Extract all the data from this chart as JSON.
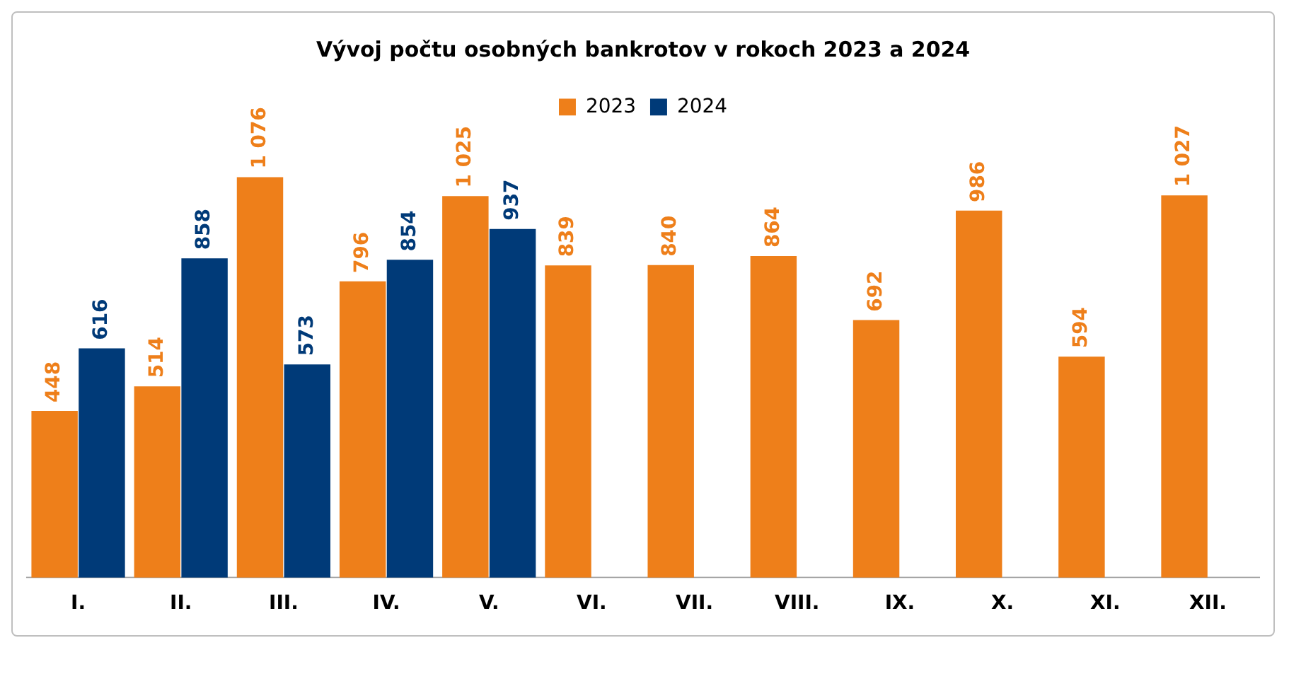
{
  "chart_data": {
    "type": "bar",
    "title": "Vývoj počtu osobných bankrotov v rokoch 2023 a 2024",
    "categories": [
      "I.",
      "II.",
      "III.",
      "IV.",
      "V.",
      "VI.",
      "VII.",
      "VIII.",
      "IX.",
      "X.",
      "XI.",
      "XII."
    ],
    "series": [
      {
        "name": "2023",
        "color": "#ee7f1a",
        "values": [
          448,
          514,
          1076,
          796,
          1025,
          839,
          840,
          864,
          692,
          986,
          594,
          1027
        ],
        "value_labels": [
          "448",
          "514",
          "1 076",
          "796",
          "1 025",
          "839",
          "840",
          "864",
          "692",
          "986",
          "594",
          "1 027"
        ]
      },
      {
        "name": "2024",
        "color": "#003a78",
        "values": [
          616,
          858,
          573,
          854,
          937,
          null,
          null,
          null,
          null,
          null,
          null,
          null
        ],
        "value_labels": [
          "616",
          "858",
          "573",
          "854",
          "937",
          null,
          null,
          null,
          null,
          null,
          null,
          null
        ]
      }
    ],
    "legend": "top",
    "grid": false
  }
}
